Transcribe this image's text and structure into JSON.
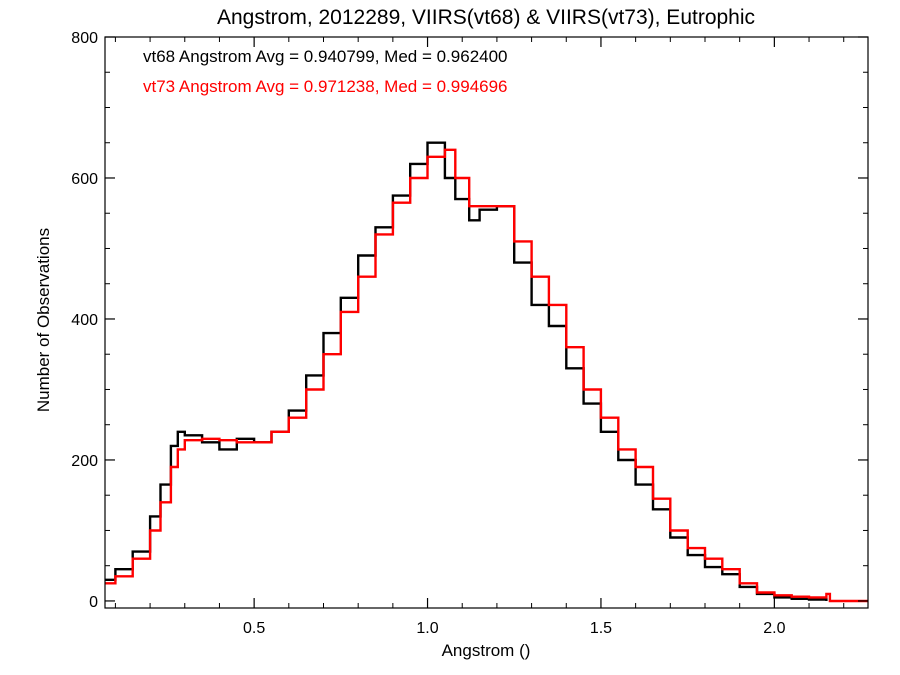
{
  "chart_data": {
    "type": "line",
    "step": true,
    "title": "Angstrom, 2012289, VIIRS(vt68) & VIIRS(vt73), Eutrophic",
    "xlabel": "Angstrom ()",
    "ylabel": "Number of Observations",
    "xlim": [
      0.07,
      2.27
    ],
    "ylim": [
      -10,
      800
    ],
    "x_ticks": [
      0.5,
      1.0,
      1.5,
      2.0
    ],
    "x_tick_labels": [
      "0.5",
      "1.0",
      "1.5",
      "2.0"
    ],
    "y_ticks": [
      0,
      200,
      400,
      600,
      800
    ],
    "y_tick_labels": [
      "0",
      "200",
      "400",
      "600",
      "800"
    ],
    "annotations": [
      {
        "text": "vt68 Angstrom Avg = 0.940799, Med = 0.962400",
        "color": "#000000"
      },
      {
        "text": "vt73 Angstrom Avg = 0.971238, Med = 0.994696",
        "color": "#ff0000"
      }
    ],
    "series": [
      {
        "color": "#000000",
        "points": [
          [
            0.07,
            30
          ],
          [
            0.1,
            45
          ],
          [
            0.15,
            70
          ],
          [
            0.2,
            120
          ],
          [
            0.23,
            165
          ],
          [
            0.26,
            220
          ],
          [
            0.28,
            240
          ],
          [
            0.3,
            235
          ],
          [
            0.35,
            225
          ],
          [
            0.4,
            215
          ],
          [
            0.45,
            230
          ],
          [
            0.5,
            225
          ],
          [
            0.55,
            240
          ],
          [
            0.6,
            270
          ],
          [
            0.65,
            320
          ],
          [
            0.7,
            380
          ],
          [
            0.75,
            430
          ],
          [
            0.8,
            490
          ],
          [
            0.85,
            530
          ],
          [
            0.9,
            575
          ],
          [
            0.95,
            620
          ],
          [
            1.0,
            650
          ],
          [
            1.05,
            600
          ],
          [
            1.08,
            570
          ],
          [
            1.12,
            540
          ],
          [
            1.15,
            555
          ],
          [
            1.2,
            560
          ],
          [
            1.25,
            480
          ],
          [
            1.3,
            420
          ],
          [
            1.35,
            390
          ],
          [
            1.4,
            330
          ],
          [
            1.45,
            280
          ],
          [
            1.5,
            240
          ],
          [
            1.55,
            200
          ],
          [
            1.6,
            165
          ],
          [
            1.65,
            130
          ],
          [
            1.7,
            90
          ],
          [
            1.75,
            65
          ],
          [
            1.8,
            48
          ],
          [
            1.85,
            38
          ],
          [
            1.9,
            20
          ],
          [
            1.95,
            10
          ],
          [
            2.0,
            5
          ],
          [
            2.05,
            3
          ],
          [
            2.1,
            2
          ],
          [
            2.15,
            0
          ]
        ]
      },
      {
        "color": "#ff0000",
        "points": [
          [
            0.07,
            25
          ],
          [
            0.1,
            35
          ],
          [
            0.15,
            60
          ],
          [
            0.2,
            100
          ],
          [
            0.23,
            140
          ],
          [
            0.26,
            190
          ],
          [
            0.28,
            215
          ],
          [
            0.3,
            228
          ],
          [
            0.35,
            230
          ],
          [
            0.4,
            228
          ],
          [
            0.45,
            225
          ],
          [
            0.5,
            225
          ],
          [
            0.55,
            240
          ],
          [
            0.6,
            260
          ],
          [
            0.65,
            300
          ],
          [
            0.7,
            350
          ],
          [
            0.75,
            410
          ],
          [
            0.8,
            460
          ],
          [
            0.85,
            520
          ],
          [
            0.9,
            565
          ],
          [
            0.95,
            600
          ],
          [
            1.0,
            630
          ],
          [
            1.05,
            640
          ],
          [
            1.08,
            600
          ],
          [
            1.12,
            560
          ],
          [
            1.15,
            560
          ],
          [
            1.2,
            560
          ],
          [
            1.25,
            510
          ],
          [
            1.3,
            460
          ],
          [
            1.35,
            420
          ],
          [
            1.4,
            360
          ],
          [
            1.45,
            300
          ],
          [
            1.5,
            260
          ],
          [
            1.55,
            215
          ],
          [
            1.6,
            190
          ],
          [
            1.65,
            145
          ],
          [
            1.7,
            100
          ],
          [
            1.75,
            75
          ],
          [
            1.8,
            60
          ],
          [
            1.85,
            45
          ],
          [
            1.9,
            25
          ],
          [
            1.95,
            12
          ],
          [
            2.0,
            8
          ],
          [
            2.05,
            6
          ],
          [
            2.1,
            5
          ],
          [
            2.15,
            10
          ],
          [
            2.16,
            0
          ],
          [
            2.27,
            0
          ]
        ]
      }
    ]
  }
}
